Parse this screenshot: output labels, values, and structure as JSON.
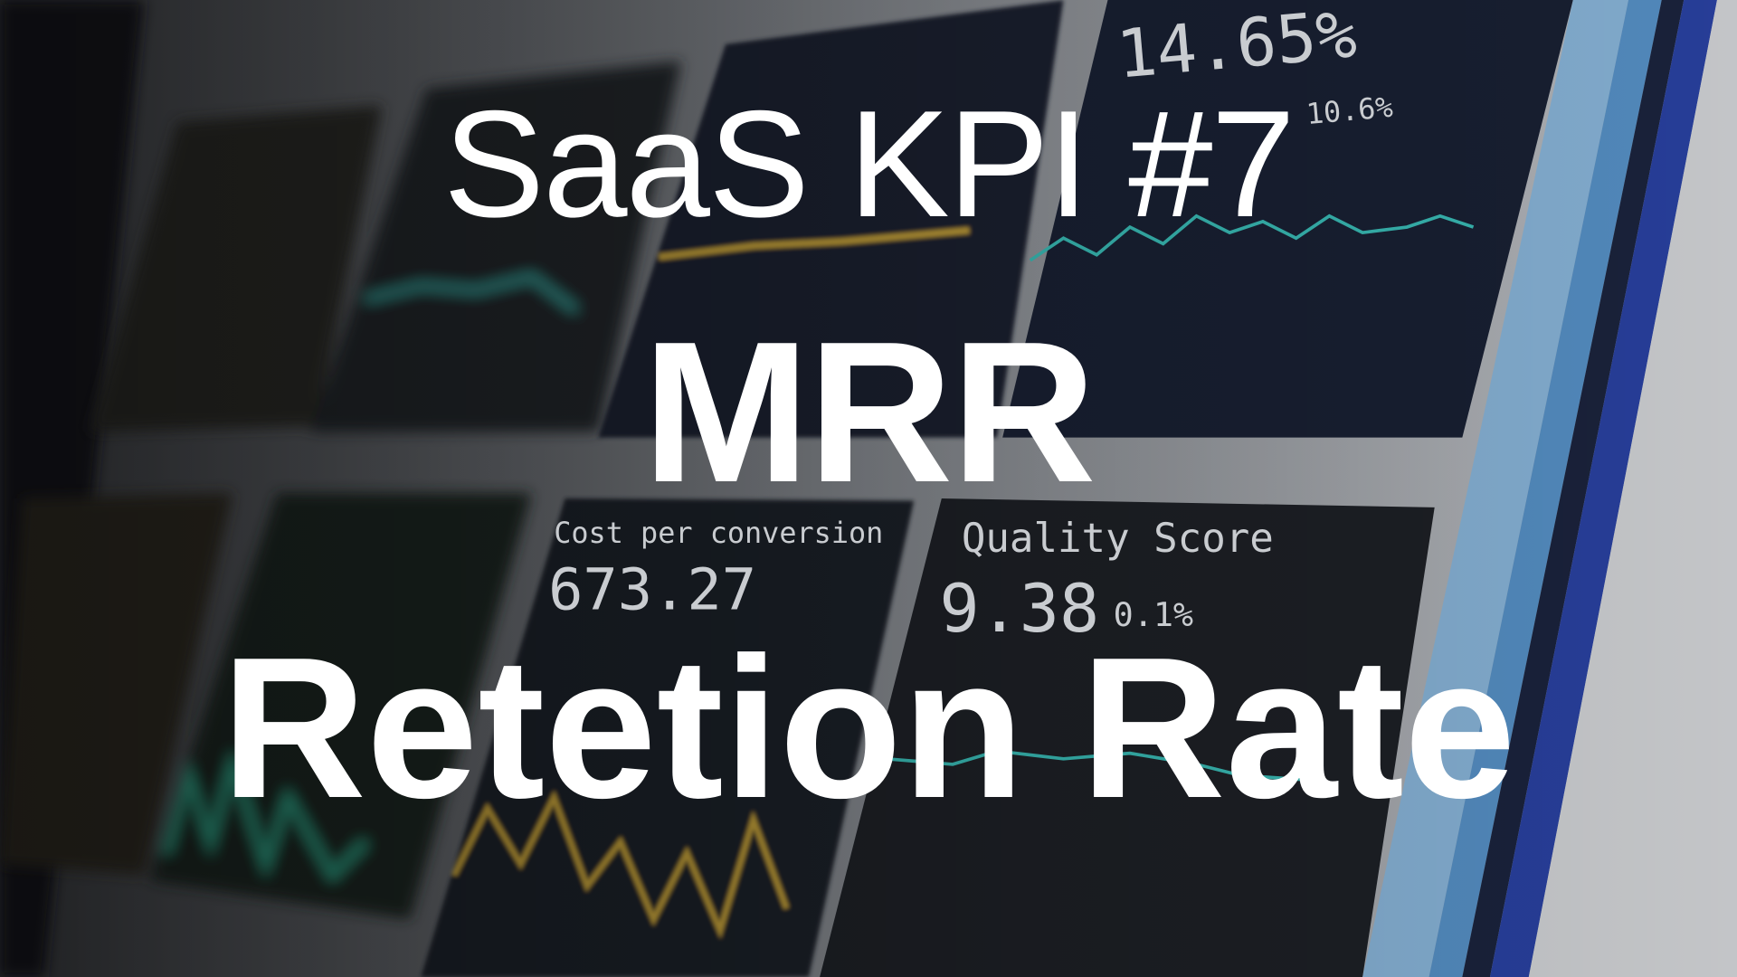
{
  "header": {
    "kicker": "SaaS KPI #7",
    "title_line1": "MRR",
    "title_line2": "Retetion Rate"
  },
  "background_photo": {
    "subject": "dashboard monitor",
    "texts": {
      "metric_top": "14.65%",
      "metric_top_delta": "10.6%",
      "cost_label": "Cost per conversion",
      "cost_value": "673.27",
      "quality_label": "Quality Score",
      "quality_value": "9.38",
      "quality_delta": "0.1%"
    }
  },
  "colors": {
    "panel": "#1c2233",
    "teal_line": "#3cc6c0",
    "yellow_line": "#c9a53a",
    "stripe_light_blue": "#7fb0dc",
    "stripe_blue": "#2b44a8",
    "text": "#ffffff"
  }
}
